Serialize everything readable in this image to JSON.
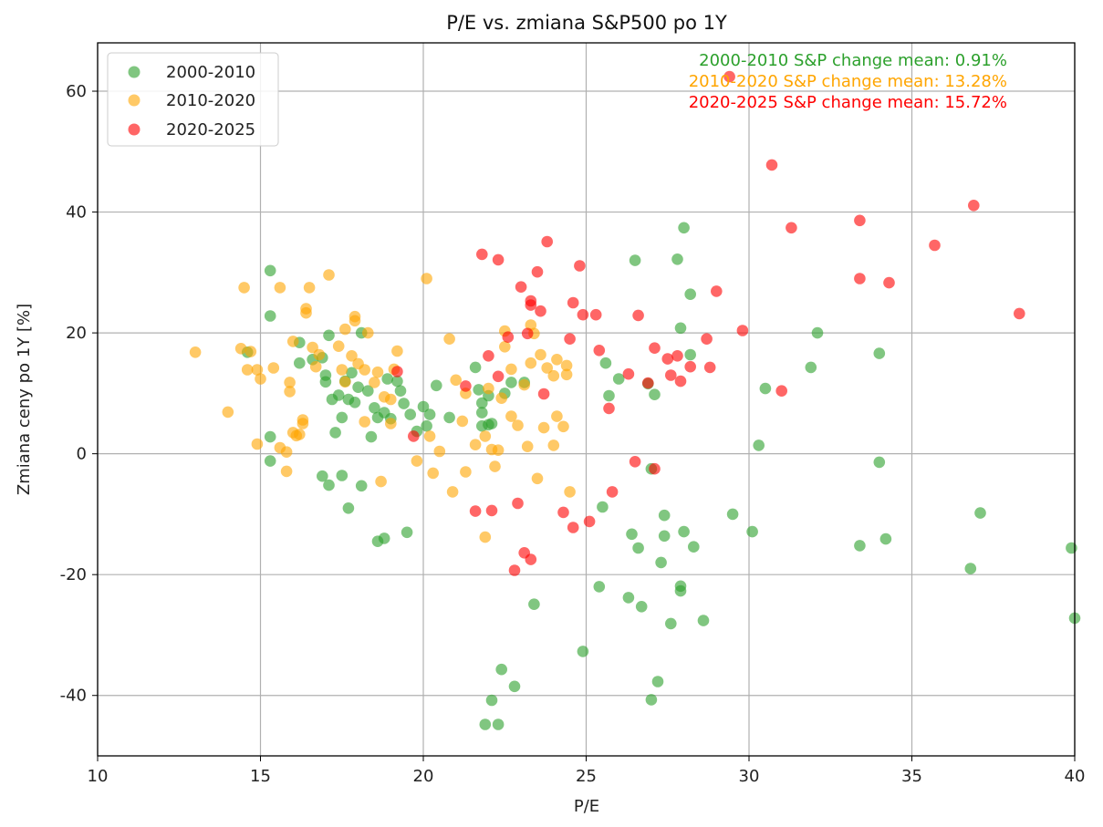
{
  "chart_data": {
    "type": "scatter",
    "title": "P/E vs. zmiana S&P500 po 1Y",
    "xlabel": "P/E",
    "ylabel": "Zmiana ceny po 1Y [%]",
    "xlim": [
      10,
      40
    ],
    "ylim": [
      -50,
      68
    ],
    "xticks": [
      10,
      15,
      20,
      25,
      30,
      35,
      40
    ],
    "yticks": [
      -40,
      -20,
      0,
      20,
      40,
      60
    ],
    "grid": true,
    "legend_placement": "top-left",
    "annotations": [
      {
        "text": "2000-2010 S&P change mean: 0.91%",
        "color": "#2ca02c"
      },
      {
        "text": "2010-2020 S&P change mean: 13.28%",
        "color": "#ffa500"
      },
      {
        "text": "2020-2025 S&P change mean: 15.72%",
        "color": "#ff0000"
      }
    ],
    "series": [
      {
        "name": "2000-2010",
        "color": "#2ca02c",
        "points": [
          [
            15.3,
            30.3
          ],
          [
            15.3,
            22.8
          ],
          [
            14.6,
            16.8
          ],
          [
            15.3,
            2.8
          ],
          [
            15.3,
            -1.2
          ],
          [
            16.2,
            18.4
          ],
          [
            16.2,
            15.0
          ],
          [
            16.6,
            15.6
          ],
          [
            16.9,
            15.9
          ],
          [
            17.0,
            13.0
          ],
          [
            17.0,
            11.9
          ],
          [
            17.1,
            19.6
          ],
          [
            17.2,
            9.0
          ],
          [
            17.4,
            9.7
          ],
          [
            17.6,
            12.0
          ],
          [
            17.7,
            9.0
          ],
          [
            17.8,
            13.4
          ],
          [
            17.9,
            8.5
          ],
          [
            18.0,
            11.0
          ],
          [
            18.1,
            20.0
          ],
          [
            18.3,
            10.4
          ],
          [
            18.4,
            2.8
          ],
          [
            18.5,
            7.6
          ],
          [
            18.6,
            6.0
          ],
          [
            18.8,
            6.8
          ],
          [
            18.9,
            12.4
          ],
          [
            19.0,
            5.8
          ],
          [
            19.2,
            12.0
          ],
          [
            19.3,
            10.4
          ],
          [
            19.4,
            8.3
          ],
          [
            19.6,
            6.5
          ],
          [
            19.8,
            3.7
          ],
          [
            20.0,
            7.8
          ],
          [
            20.1,
            4.6
          ],
          [
            20.2,
            6.5
          ],
          [
            20.4,
            11.3
          ],
          [
            20.8,
            6.0
          ],
          [
            17.3,
            3.5
          ],
          [
            17.5,
            6.0
          ],
          [
            16.9,
            -3.7
          ],
          [
            17.1,
            -5.2
          ],
          [
            17.5,
            -3.6
          ],
          [
            17.7,
            -9.0
          ],
          [
            18.1,
            -5.3
          ],
          [
            18.6,
            -14.5
          ],
          [
            18.8,
            -14.0
          ],
          [
            19.5,
            -13.0
          ],
          [
            21.6,
            14.3
          ],
          [
            21.7,
            10.6
          ],
          [
            21.8,
            8.4
          ],
          [
            21.8,
            4.6
          ],
          [
            22.0,
            4.8
          ],
          [
            22.0,
            9.6
          ],
          [
            22.1,
            5.0
          ],
          [
            22.7,
            11.8
          ],
          [
            23.1,
            11.8
          ],
          [
            21.9,
            -44.8
          ],
          [
            22.1,
            -40.8
          ],
          [
            22.3,
            -44.8
          ],
          [
            22.4,
            -35.7
          ],
          [
            22.8,
            -38.5
          ],
          [
            23.4,
            -24.9
          ],
          [
            24.9,
            -32.7
          ],
          [
            25.4,
            -22.0
          ],
          [
            25.5,
            -8.8
          ],
          [
            25.6,
            15.0
          ],
          [
            25.7,
            9.6
          ],
          [
            26.0,
            12.4
          ],
          [
            26.5,
            32.0
          ],
          [
            26.9,
            11.6
          ],
          [
            27.1,
            9.8
          ],
          [
            26.4,
            -13.3
          ],
          [
            26.6,
            -15.6
          ],
          [
            26.3,
            -23.8
          ],
          [
            26.7,
            -25.3
          ],
          [
            27.2,
            -37.7
          ],
          [
            27.0,
            -40.7
          ],
          [
            27.3,
            -18.0
          ],
          [
            27.4,
            -10.2
          ],
          [
            27.4,
            -13.6
          ],
          [
            27.6,
            -28.1
          ],
          [
            27.8,
            32.2
          ],
          [
            27.9,
            20.8
          ],
          [
            28.0,
            37.4
          ],
          [
            28.2,
            26.4
          ],
          [
            28.2,
            16.4
          ],
          [
            28.0,
            -12.9
          ],
          [
            28.3,
            -15.4
          ],
          [
            27.9,
            -21.9
          ],
          [
            27.9,
            -22.7
          ],
          [
            28.6,
            -27.6
          ],
          [
            29.5,
            -10.0
          ],
          [
            30.1,
            -12.9
          ],
          [
            30.3,
            1.4
          ],
          [
            30.5,
            10.8
          ],
          [
            31.9,
            14.3
          ],
          [
            32.1,
            20.0
          ],
          [
            33.4,
            -15.2
          ],
          [
            34.0,
            16.6
          ],
          [
            34.0,
            -1.4
          ],
          [
            34.2,
            -14.1
          ],
          [
            36.8,
            -19.0
          ],
          [
            37.1,
            -9.8
          ],
          [
            39.9,
            -15.6
          ],
          [
            40.0,
            -27.2
          ],
          [
            27.0,
            -2.5
          ],
          [
            22.5,
            10.0
          ],
          [
            21.8,
            6.8
          ]
        ]
      },
      {
        "name": "2010-2020",
        "color": "#ffa500",
        "points": [
          [
            13.0,
            16.8
          ],
          [
            14.0,
            6.9
          ],
          [
            14.4,
            17.4
          ],
          [
            14.5,
            27.5
          ],
          [
            14.6,
            13.9
          ],
          [
            14.7,
            16.9
          ],
          [
            14.9,
            13.9
          ],
          [
            15.0,
            12.4
          ],
          [
            14.9,
            1.6
          ],
          [
            15.4,
            14.2
          ],
          [
            15.6,
            27.5
          ],
          [
            15.8,
            -2.9
          ],
          [
            15.8,
            0.3
          ],
          [
            15.9,
            10.3
          ],
          [
            15.9,
            11.8
          ],
          [
            16.0,
            18.6
          ],
          [
            16.1,
            3.0
          ],
          [
            16.3,
            5.0
          ],
          [
            16.3,
            5.6
          ],
          [
            16.4,
            24.0
          ],
          [
            16.4,
            23.3
          ],
          [
            16.5,
            27.5
          ],
          [
            16.6,
            17.6
          ],
          [
            16.7,
            14.4
          ],
          [
            16.8,
            16.4
          ],
          [
            17.1,
            29.6
          ],
          [
            17.4,
            17.8
          ],
          [
            17.5,
            13.9
          ],
          [
            17.6,
            11.9
          ],
          [
            17.6,
            20.6
          ],
          [
            17.8,
            16.2
          ],
          [
            17.9,
            22.7
          ],
          [
            17.9,
            22.0
          ],
          [
            18.0,
            14.9
          ],
          [
            18.2,
            13.9
          ],
          [
            18.2,
            5.3
          ],
          [
            18.3,
            20.0
          ],
          [
            18.5,
            11.8
          ],
          [
            18.6,
            13.5
          ],
          [
            18.7,
            -4.6
          ],
          [
            18.8,
            9.4
          ],
          [
            19.0,
            9.0
          ],
          [
            19.1,
            14.0
          ],
          [
            19.2,
            17.0
          ],
          [
            19.8,
            -1.2
          ],
          [
            20.1,
            29.0
          ],
          [
            20.2,
            2.9
          ],
          [
            20.3,
            -3.2
          ],
          [
            20.5,
            0.4
          ],
          [
            20.8,
            19.0
          ],
          [
            20.9,
            -6.3
          ],
          [
            21.0,
            12.2
          ],
          [
            21.2,
            5.4
          ],
          [
            21.3,
            -3.0
          ],
          [
            21.3,
            10.0
          ],
          [
            21.6,
            1.5
          ],
          [
            21.9,
            2.9
          ],
          [
            21.9,
            -13.8
          ],
          [
            22.1,
            0.7
          ],
          [
            22.2,
            -2.1
          ],
          [
            22.3,
            0.6
          ],
          [
            22.4,
            9.2
          ],
          [
            22.5,
            17.7
          ],
          [
            22.5,
            20.3
          ],
          [
            22.7,
            14.0
          ],
          [
            22.7,
            6.2
          ],
          [
            22.9,
            4.7
          ],
          [
            23.1,
            11.4
          ],
          [
            23.2,
            1.2
          ],
          [
            23.3,
            15.0
          ],
          [
            23.3,
            21.3
          ],
          [
            23.4,
            19.9
          ],
          [
            23.5,
            -4.1
          ],
          [
            23.6,
            16.4
          ],
          [
            23.7,
            4.3
          ],
          [
            23.8,
            14.2
          ],
          [
            24.0,
            12.9
          ],
          [
            24.0,
            1.4
          ],
          [
            24.1,
            6.2
          ],
          [
            24.1,
            15.6
          ],
          [
            24.3,
            4.5
          ],
          [
            24.4,
            14.6
          ],
          [
            24.4,
            13.1
          ],
          [
            24.5,
            -6.3
          ],
          [
            22.0,
            10.8
          ],
          [
            19.0,
            5.0
          ],
          [
            15.6,
            1.0
          ],
          [
            16.2,
            3.2
          ],
          [
            16.0,
            3.5
          ]
        ]
      },
      {
        "name": "2020-2025",
        "color": "#ff0000",
        "points": [
          [
            19.7,
            2.9
          ],
          [
            19.2,
            13.6
          ],
          [
            21.3,
            11.2
          ],
          [
            21.6,
            -9.5
          ],
          [
            21.8,
            33.0
          ],
          [
            22.0,
            16.2
          ],
          [
            22.1,
            -9.4
          ],
          [
            22.3,
            32.1
          ],
          [
            22.3,
            12.8
          ],
          [
            22.6,
            19.3
          ],
          [
            22.8,
            -19.3
          ],
          [
            22.9,
            -8.2
          ],
          [
            23.0,
            27.6
          ],
          [
            23.1,
            -16.4
          ],
          [
            23.2,
            19.9
          ],
          [
            23.3,
            -17.5
          ],
          [
            23.3,
            25.3
          ],
          [
            23.5,
            30.1
          ],
          [
            23.6,
            23.6
          ],
          [
            23.7,
            9.9
          ],
          [
            23.8,
            35.1
          ],
          [
            24.3,
            -9.7
          ],
          [
            24.5,
            19.0
          ],
          [
            24.6,
            25.0
          ],
          [
            24.6,
            -12.2
          ],
          [
            24.8,
            31.1
          ],
          [
            24.9,
            23.0
          ],
          [
            25.1,
            -11.2
          ],
          [
            25.3,
            23.0
          ],
          [
            25.4,
            17.1
          ],
          [
            25.7,
            7.5
          ],
          [
            25.8,
            -6.3
          ],
          [
            26.3,
            13.2
          ],
          [
            26.5,
            -1.3
          ],
          [
            26.6,
            22.9
          ],
          [
            26.9,
            11.7
          ],
          [
            27.1,
            -2.5
          ],
          [
            27.1,
            17.5
          ],
          [
            27.5,
            15.7
          ],
          [
            27.6,
            13.0
          ],
          [
            27.8,
            16.2
          ],
          [
            27.9,
            12.0
          ],
          [
            28.2,
            14.4
          ],
          [
            28.7,
            19.0
          ],
          [
            28.8,
            14.3
          ],
          [
            29.0,
            26.9
          ],
          [
            29.8,
            20.4
          ],
          [
            29.4,
            62.4
          ],
          [
            30.7,
            47.8
          ],
          [
            31.0,
            10.4
          ],
          [
            31.3,
            37.4
          ],
          [
            33.4,
            38.6
          ],
          [
            33.4,
            29.0
          ],
          [
            34.3,
            28.3
          ],
          [
            35.7,
            34.5
          ],
          [
            36.9,
            41.1
          ],
          [
            38.3,
            23.2
          ],
          [
            23.3,
            24.6
          ]
        ]
      }
    ]
  }
}
